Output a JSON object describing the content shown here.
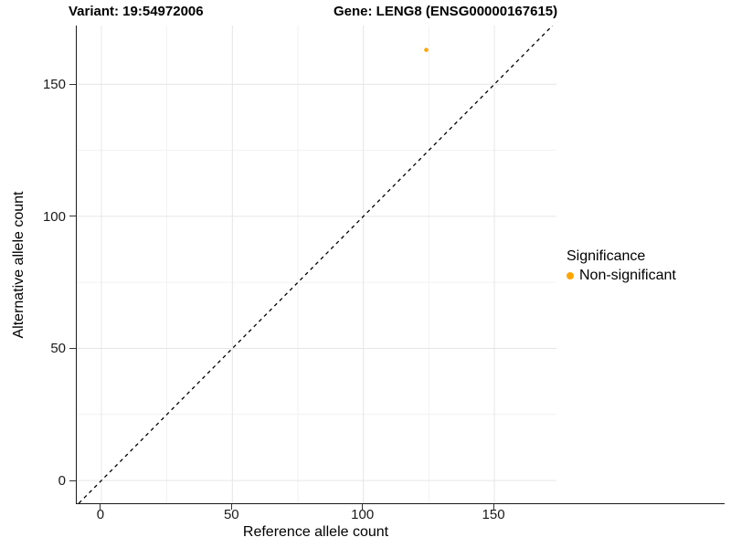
{
  "title": {
    "variant": "Variant: 19:54972006",
    "gene": "Gene: LENG8 (ENSG00000167615)"
  },
  "chart_data": {
    "type": "scatter",
    "title": "Variant: 19:54972006   Gene: LENG8 (ENSG00000167615)",
    "xlabel": "Reference allele count",
    "ylabel": "Alternative allele count",
    "xlim": [
      -9.4,
      173.7
    ],
    "ylim": [
      -8.6,
      172.2
    ],
    "x_ticks": [
      0,
      50,
      100,
      150
    ],
    "y_ticks": [
      0,
      50,
      100,
      150
    ],
    "x_minor_ticks": [
      25,
      75,
      125
    ],
    "y_minor_ticks": [
      25,
      75,
      125
    ],
    "grid": true,
    "legend_position": "right",
    "reference_line": {
      "name": "identity-line",
      "equation": "y = x",
      "style": "dashed",
      "color": "#000000"
    },
    "series": [
      {
        "name": "Non-significant",
        "color": "#FFA500",
        "points": [
          {
            "x": 124,
            "y": 163
          }
        ]
      }
    ],
    "legend": {
      "title": "Significance",
      "entries": [
        {
          "label": "Non-significant",
          "color": "#FFA500"
        }
      ]
    }
  },
  "colors": {
    "background": "#ffffff",
    "axis_line": "#1a1a1a",
    "major_grid": "#e6e6e6",
    "minor_grid": "#f2f2f2",
    "tick_text": "#1a1a1a",
    "point": "#FFA500"
  }
}
